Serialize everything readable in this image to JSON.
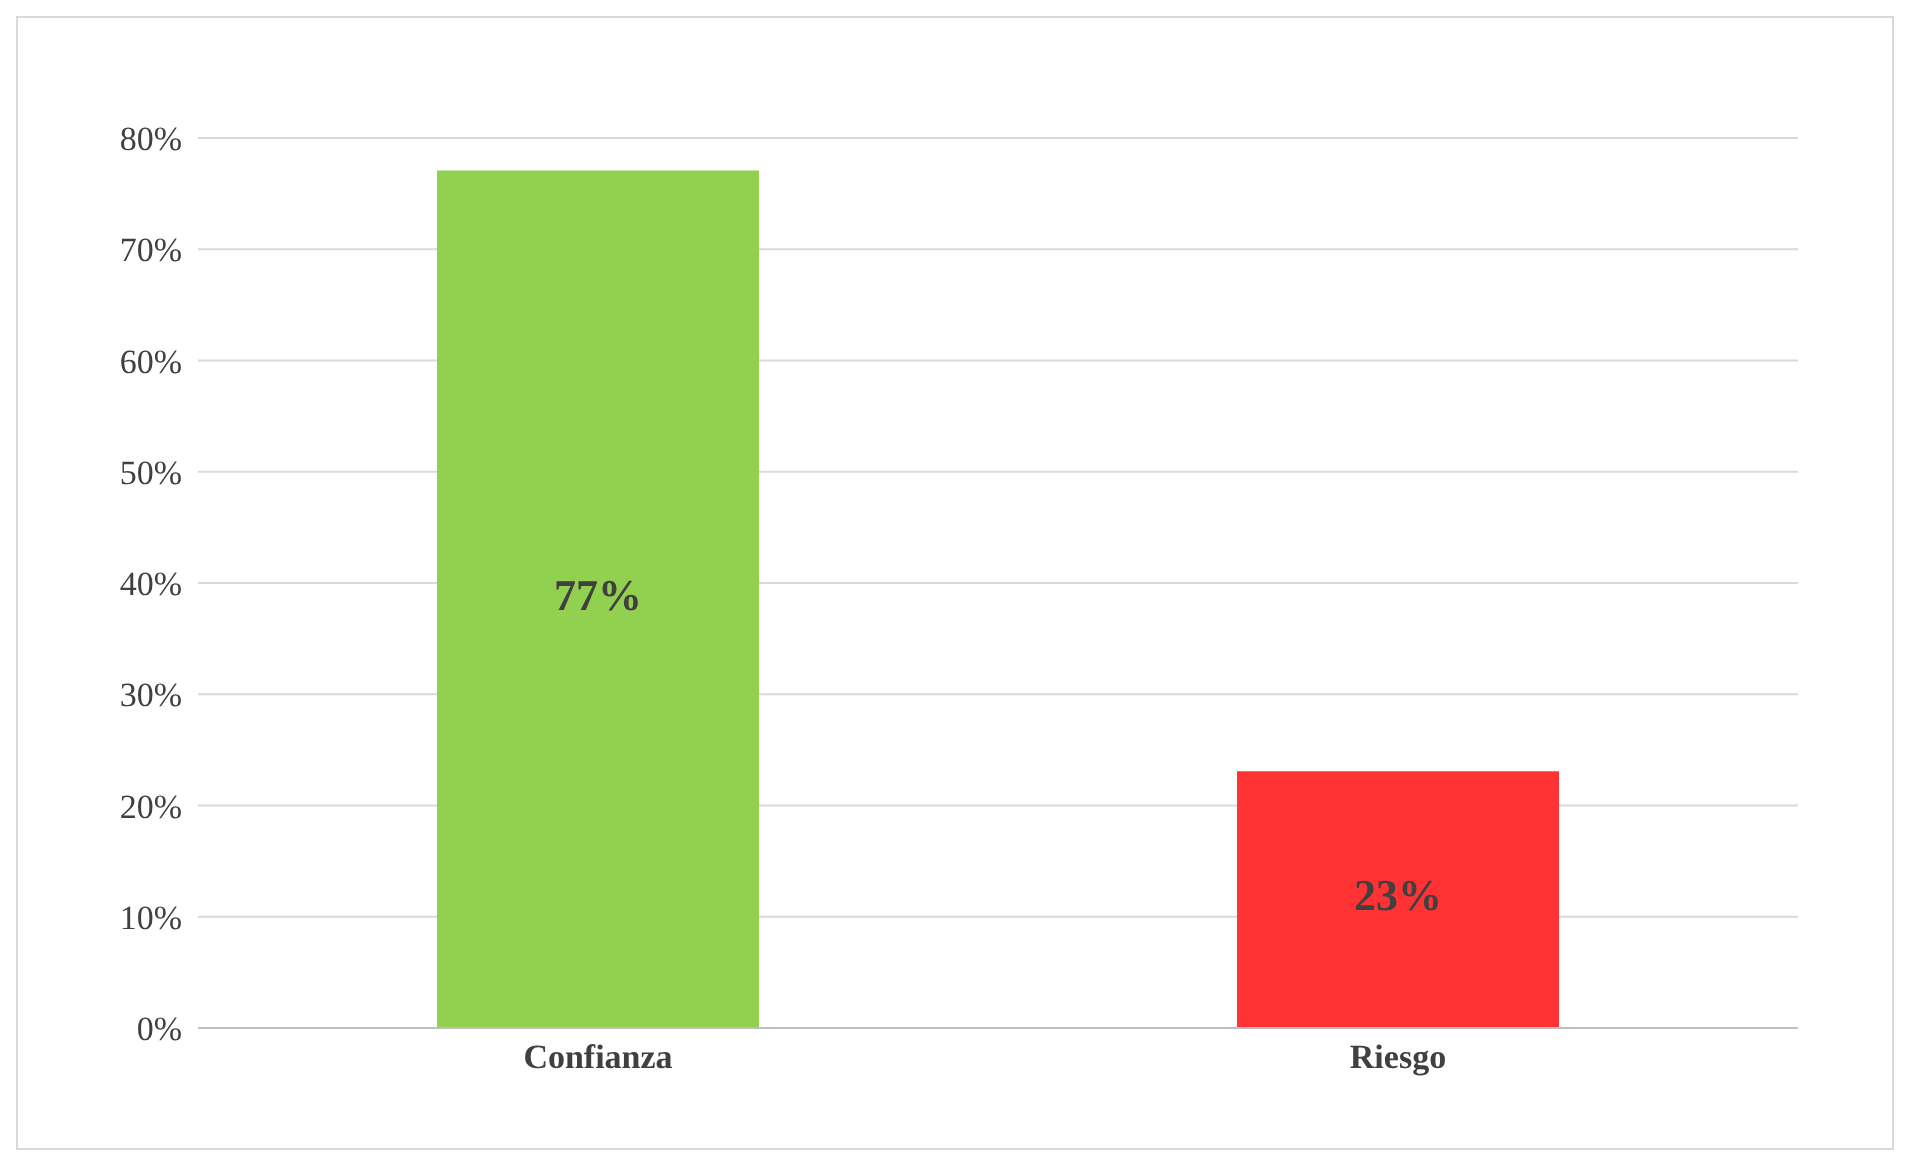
{
  "chart_data": {
    "type": "bar",
    "categories": [
      "Confianza",
      "Riesgo"
    ],
    "values": [
      77,
      23
    ],
    "colors": [
      "#92d050",
      "#ff3333"
    ],
    "value_labels": [
      "77%",
      "23%"
    ],
    "ylim": [
      0,
      80
    ],
    "yticks": [
      {
        "value": 0,
        "label": "0%"
      },
      {
        "value": 10,
        "label": "10%"
      },
      {
        "value": 20,
        "label": "20%"
      },
      {
        "value": 30,
        "label": "30%"
      },
      {
        "value": 40,
        "label": "40%"
      },
      {
        "value": 50,
        "label": "50%"
      },
      {
        "value": 60,
        "label": "60%"
      },
      {
        "value": 70,
        "label": "70%"
      },
      {
        "value": 80,
        "label": "80%"
      }
    ],
    "grid": "y"
  }
}
